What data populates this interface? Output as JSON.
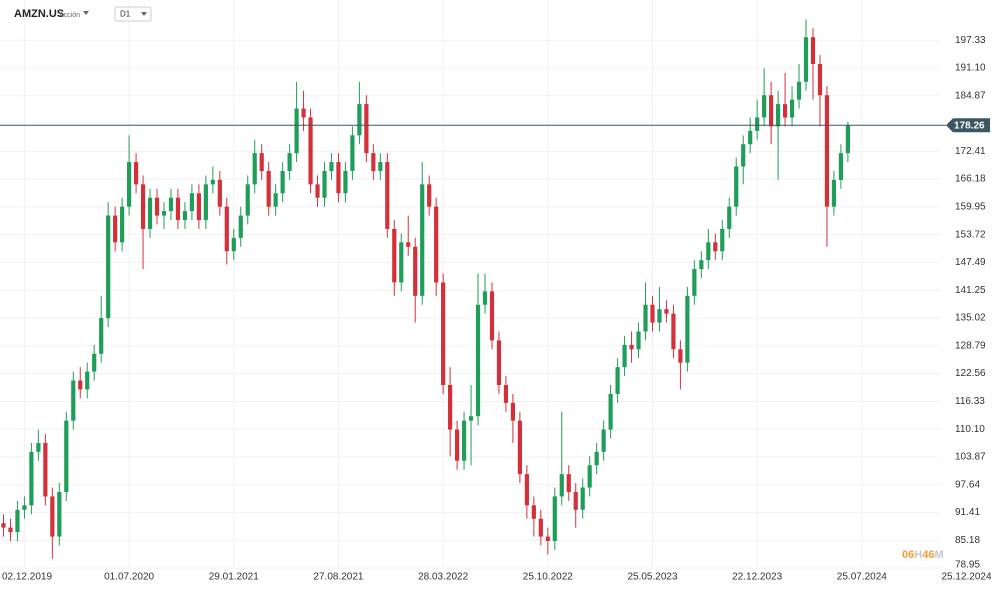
{
  "header": {
    "symbol": "AMZN.US",
    "asset_type": "Acción",
    "timeframe": "D1"
  },
  "chart_data": {
    "type": "candlestick",
    "open": [
      89,
      88,
      87,
      92,
      93,
      105,
      107,
      95,
      86,
      96,
      112,
      121,
      119,
      123,
      127,
      135,
      158,
      152,
      160,
      170,
      165,
      155,
      162,
      158,
      159,
      162,
      157,
      159,
      163,
      157,
      165,
      166,
      160,
      150,
      153,
      158,
      165,
      172,
      168,
      160,
      163,
      168,
      172,
      182,
      180,
      165,
      162,
      168,
      170,
      163,
      168,
      176,
      183,
      172,
      168,
      170,
      155,
      143,
      152,
      151,
      140,
      165,
      160,
      143,
      120,
      110,
      103,
      112,
      113,
      138,
      141,
      130,
      120,
      116,
      112,
      100,
      93,
      90,
      86,
      85,
      95,
      100,
      96,
      92,
      97,
      102,
      105,
      110,
      118,
      124,
      129,
      128,
      132,
      138,
      134,
      137,
      136,
      128,
      125,
      140,
      146,
      148,
      152,
      150,
      155,
      160,
      169,
      174,
      177,
      180,
      185,
      178,
      183,
      180,
      184,
      188,
      198,
      192,
      185,
      160,
      166,
      172
    ],
    "high": [
      91,
      90,
      94,
      95,
      107,
      110,
      109,
      97,
      98,
      114,
      123,
      124,
      125,
      129,
      140,
      161,
      160,
      162,
      176,
      172,
      167,
      164,
      164,
      161,
      164,
      164,
      161,
      165,
      165,
      167,
      169,
      168,
      162,
      155,
      160,
      167,
      175,
      174,
      170,
      165,
      170,
      174,
      188,
      186,
      182,
      167,
      170,
      172,
      172,
      170,
      178,
      188,
      185,
      174,
      172,
      172,
      157,
      154,
      158,
      153,
      170,
      167,
      162,
      145,
      124,
      112,
      114,
      120,
      145,
      145,
      143,
      132,
      122,
      118,
      114,
      102,
      95,
      92,
      88,
      97,
      114,
      102,
      98,
      99,
      104,
      107,
      112,
      120,
      126,
      131,
      132,
      134,
      143,
      140,
      142,
      139,
      138,
      130,
      142,
      148,
      150,
      155,
      154,
      157,
      162,
      171,
      176,
      180,
      184,
      191,
      188,
      186,
      190,
      187,
      192,
      202,
      200,
      194,
      187,
      168,
      174,
      179
    ],
    "low": [
      86,
      85,
      85,
      90,
      91,
      103,
      93,
      81,
      84,
      94,
      110,
      117,
      117,
      121,
      125,
      133,
      150,
      150,
      158,
      163,
      146,
      153,
      156,
      155,
      157,
      155,
      155,
      157,
      155,
      155,
      163,
      158,
      147,
      148,
      151,
      156,
      163,
      166,
      158,
      158,
      161,
      166,
      170,
      177,
      163,
      160,
      160,
      166,
      161,
      161,
      166,
      174,
      170,
      166,
      166,
      153,
      140,
      141,
      149,
      134,
      138,
      158,
      140,
      118,
      104,
      101,
      101,
      102,
      111,
      136,
      128,
      118,
      114,
      107,
      98,
      90,
      86,
      84,
      82,
      83,
      93,
      94,
      88,
      90,
      95,
      100,
      103,
      108,
      116,
      122,
      125,
      126,
      130,
      132,
      132,
      134,
      126,
      119,
      123,
      138,
      144,
      146,
      148,
      148,
      153,
      158,
      165,
      172,
      175,
      178,
      174,
      166,
      178,
      178,
      182,
      186,
      184,
      178,
      151,
      158,
      164,
      170
    ],
    "close": [
      88,
      87,
      92,
      93,
      105,
      107,
      95,
      86,
      96,
      112,
      121,
      119,
      123,
      127,
      135,
      158,
      152,
      160,
      170,
      165,
      155,
      162,
      158,
      159,
      162,
      157,
      159,
      163,
      157,
      165,
      166,
      160,
      150,
      153,
      158,
      165,
      172,
      168,
      160,
      163,
      168,
      172,
      182,
      180,
      165,
      162,
      168,
      170,
      163,
      168,
      176,
      183,
      172,
      168,
      170,
      155,
      143,
      152,
      151,
      140,
      165,
      160,
      143,
      120,
      110,
      103,
      112,
      113,
      138,
      141,
      130,
      120,
      116,
      112,
      100,
      93,
      90,
      86,
      85,
      95,
      100,
      96,
      92,
      97,
      102,
      105,
      110,
      118,
      124,
      129,
      128,
      132,
      138,
      134,
      137,
      136,
      128,
      125,
      140,
      146,
      148,
      152,
      150,
      155,
      160,
      169,
      174,
      177,
      180,
      185,
      178,
      183,
      180,
      184,
      188,
      198,
      192,
      185,
      160,
      166,
      172,
      178.26
    ],
    "up_color": "#1f9e5a",
    "down_color": "#d3303a",
    "last_price": 178.26,
    "last_price_color": "#3b5563",
    "countdown": [
      "06",
      "H",
      "46",
      "M"
    ],
    "xlim": [
      -0.5,
      134.2
    ],
    "xticks": [
      {
        "value": 3,
        "label": "02.12.2019"
      },
      {
        "value": 18,
        "label": "01.07.2020"
      },
      {
        "value": 33,
        "label": "29.01.2021"
      },
      {
        "value": 48,
        "label": "27.08.2021"
      },
      {
        "value": 63,
        "label": "28.03.2022"
      },
      {
        "value": 78,
        "label": "25.10.2022"
      },
      {
        "value": 93,
        "label": "25.05.2023"
      },
      {
        "value": 108,
        "label": "22.12.2023"
      },
      {
        "value": 123,
        "label": "25.07.2024"
      },
      {
        "value": 138,
        "label": "25.12.2024"
      }
    ],
    "ylim": [
      78.95,
      206.35
    ],
    "yticks": [
      78.95,
      85.18,
      91.41,
      97.64,
      103.87,
      {
        "value": 110.1,
        "label": "110.10"
      },
      116.33,
      122.56,
      128.79,
      135.02,
      141.25,
      147.49,
      153.72,
      159.95,
      166.18,
      172.41,
      184.87,
      {
        "value": 191.1,
        "label": "191.10"
      },
      197.33
    ],
    "grid": true
  }
}
